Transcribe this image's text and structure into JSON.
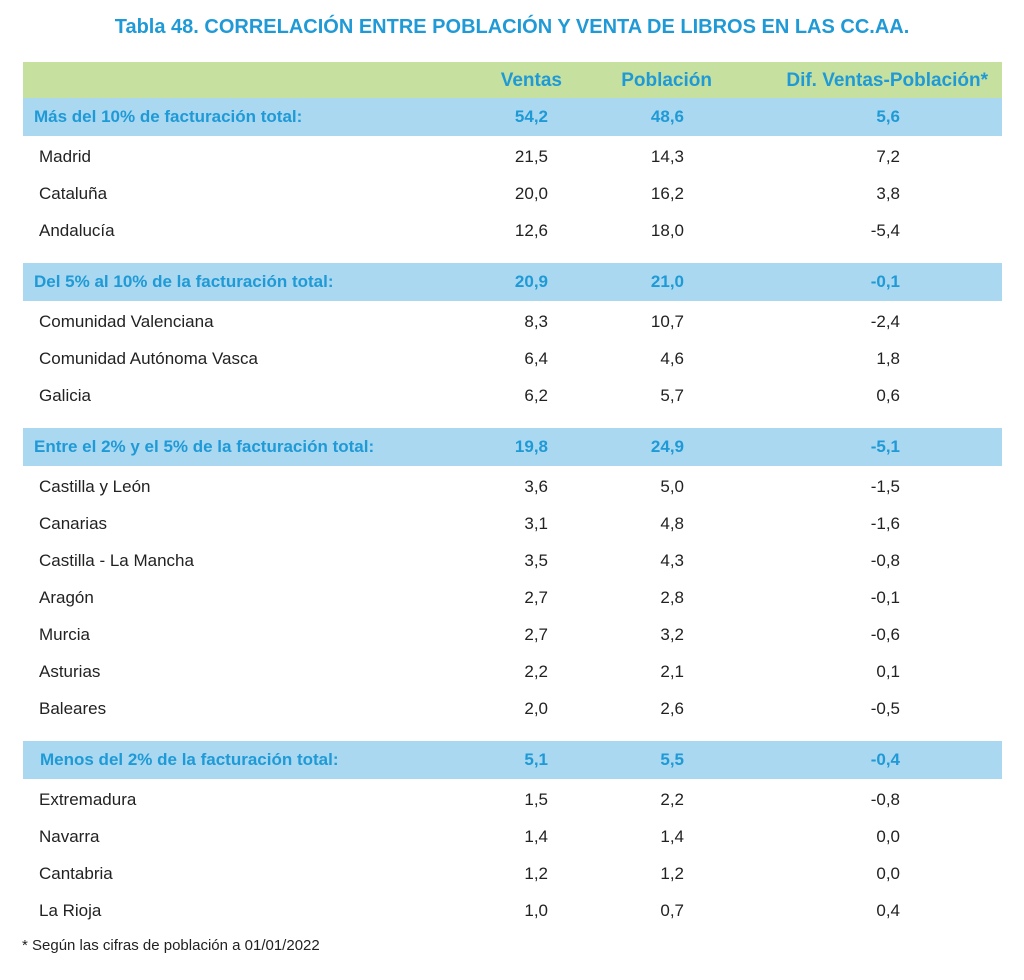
{
  "title": "Tabla 48.  CORRELACIÓN ENTRE POBLACIÓN Y VENTA DE LIBROS EN LAS CC.AA.",
  "header": {
    "columns": [
      "Ventas",
      "Población",
      "Dif. Ventas-Población*"
    ]
  },
  "groups": [
    {
      "label": "Más del 10% de facturación total:",
      "values": [
        "54,2",
        "48,6",
        "5,6"
      ],
      "rows": [
        [
          "Madrid",
          "21,5",
          "14,3",
          "7,2"
        ],
        [
          "Cataluña",
          "20,0",
          "16,2",
          "3,8"
        ],
        [
          "Andalucía",
          "12,6",
          "18,0",
          "-5,4"
        ]
      ]
    },
    {
      "label": "Del 5% al 10% de la facturación total:",
      "values": [
        "20,9",
        "21,0",
        "-0,1"
      ],
      "rows": [
        [
          "Comunidad Valenciana",
          "8,3",
          "10,7",
          "-2,4"
        ],
        [
          "Comunidad Autónoma Vasca",
          "6,4",
          "4,6",
          "1,8"
        ],
        [
          "Galicia",
          "6,2",
          "5,7",
          "0,6"
        ]
      ]
    },
    {
      "label": "Entre el 2% y el 5% de la facturación total:",
      "values": [
        "19,8",
        "24,9",
        "-5,1"
      ],
      "rows": [
        [
          "Castilla y León",
          "3,6",
          "5,0",
          "-1,5"
        ],
        [
          "Canarias",
          "3,1",
          "4,8",
          "-1,6"
        ],
        [
          "Castilla - La Mancha",
          "3,5",
          "4,3",
          "-0,8"
        ],
        [
          "Aragón",
          "2,7",
          "2,8",
          "-0,1"
        ],
        [
          "Murcia",
          "2,7",
          "3,2",
          "-0,6"
        ],
        [
          "Asturias",
          "2,2",
          "2,1",
          "0,1"
        ],
        [
          "Baleares",
          "2,0",
          "2,6",
          "-0,5"
        ]
      ]
    },
    {
      "label": "Menos del 2% de la facturación total:",
      "values": [
        "5,1",
        "5,5",
        "-0,4"
      ],
      "rows": [
        [
          "Extremadura",
          "1,5",
          "2,2",
          "-0,8"
        ],
        [
          "Navarra",
          "1,4",
          "1,4",
          "0,0"
        ],
        [
          "Cantabria",
          "1,2",
          "1,2",
          "0,0"
        ],
        [
          "La Rioja",
          "1,0",
          "0,7",
          "0,4"
        ]
      ]
    }
  ],
  "footnote": "*  Según las cifras de población a 01/01/2022"
}
